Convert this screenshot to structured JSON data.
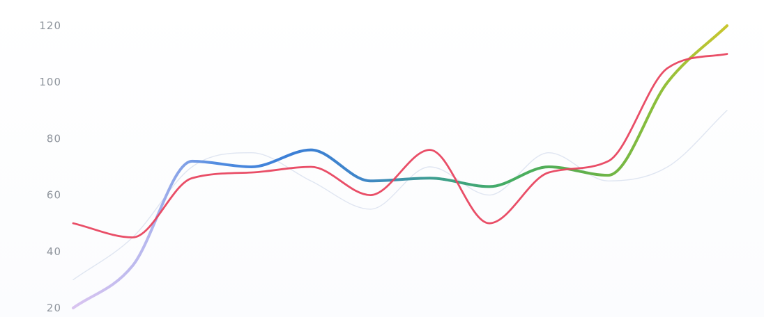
{
  "chart_data": {
    "type": "line",
    "x": [
      0,
      1,
      2,
      3,
      4,
      5,
      6,
      7,
      8,
      9,
      10,
      11
    ],
    "ylim": [
      20,
      120
    ],
    "yticks": [
      {
        "value": 20,
        "label": "20"
      },
      {
        "value": 40,
        "label": "40"
      },
      {
        "value": 60,
        "label": "60"
      },
      {
        "value": 80,
        "label": "80"
      },
      {
        "value": 100,
        "label": "100"
      },
      {
        "value": 120,
        "label": "120"
      }
    ],
    "grid": false,
    "series": [
      {
        "color": "#cfd8ea",
        "values": [
          30,
          45,
          70,
          75,
          65,
          55,
          70,
          60,
          75,
          65,
          70,
          90
        ],
        "gradient": false,
        "width": 1.4,
        "opacity": 0.65
      },
      {
        "color": "#3f7fd6",
        "values": [
          20,
          35,
          72,
          70,
          76,
          65,
          66,
          63,
          70,
          67,
          100,
          120
        ],
        "gradient": true,
        "gradient_colors": [
          "#d9c4f0",
          "#b8b8ee",
          "#4f8be0",
          "#3b7fd6",
          "#3f86c8",
          "#3d9f8d",
          "#45ad62",
          "#5fb04d",
          "#8abe3c",
          "#c9c62e"
        ],
        "width": 4,
        "opacity": 1
      },
      {
        "color": "#e8455f",
        "values": [
          50,
          45,
          66,
          68,
          70,
          60,
          76,
          50,
          68,
          72,
          105,
          110
        ],
        "gradient": false,
        "width": 2.8,
        "opacity": 0.95
      }
    ]
  }
}
